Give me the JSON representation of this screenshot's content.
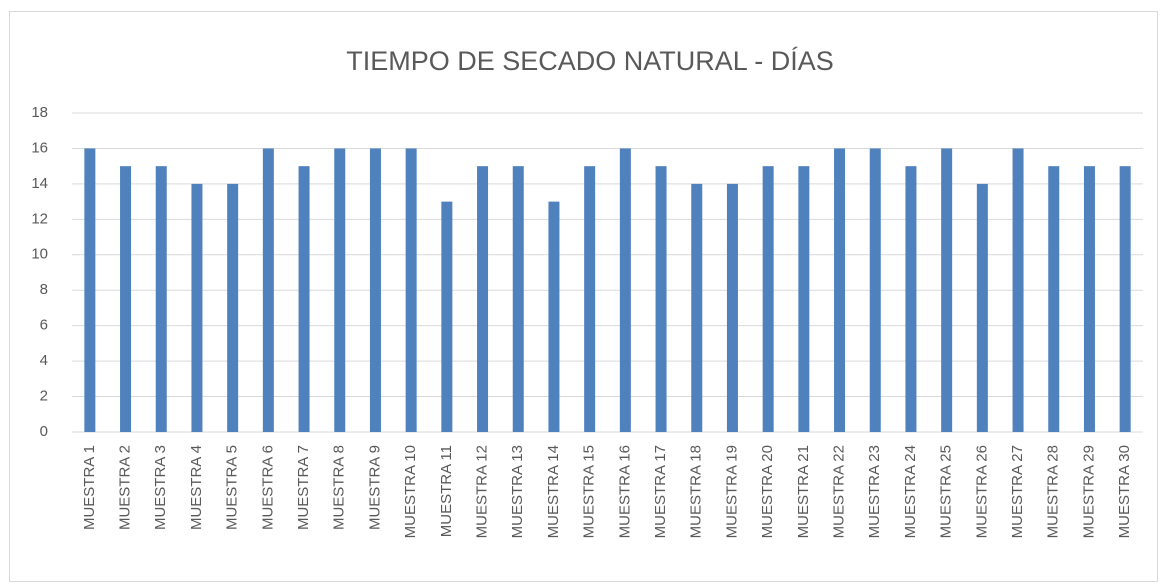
{
  "chart_data": {
    "type": "bar",
    "title": "TIEMPO DE SECADO NATURAL - DÍAS",
    "categories": [
      "MUESTRA 1",
      "MUESTRA 2",
      "MUESTRA 3",
      "MUESTRA 4",
      "MUESTRA 5",
      "MUESTRA 6",
      "MUESTRA 7",
      "MUESTRA 8",
      "MUESTRA 9",
      "MUESTRA 10",
      "MUESTRA 11",
      "MUESTRA 12",
      "MUESTRA 13",
      "MUESTRA 14",
      "MUESTRA 15",
      "MUESTRA 16",
      "MUESTRA 17",
      "MUESTRA 18",
      "MUESTRA 19",
      "MUESTRA 20",
      "MUESTRA 21",
      "MUESTRA 22",
      "MUESTRA 23",
      "MUESTRA 24",
      "MUESTRA 25",
      "MUESTRA 26",
      "MUESTRA 27",
      "MUESTRA 28",
      "MUESTRA 29",
      "MUESTRA 30"
    ],
    "values": [
      16,
      15,
      15,
      14,
      14,
      16,
      15,
      16,
      16,
      16,
      13,
      15,
      15,
      13,
      15,
      16,
      15,
      14,
      14,
      15,
      15,
      16,
      16,
      15,
      16,
      14,
      16,
      15,
      15,
      15
    ],
    "color": "#4f81bd",
    "ylim": [
      0,
      18
    ],
    "yticks": [
      0,
      2,
      4,
      6,
      8,
      10,
      12,
      14,
      16,
      18
    ],
    "grid": true
  }
}
